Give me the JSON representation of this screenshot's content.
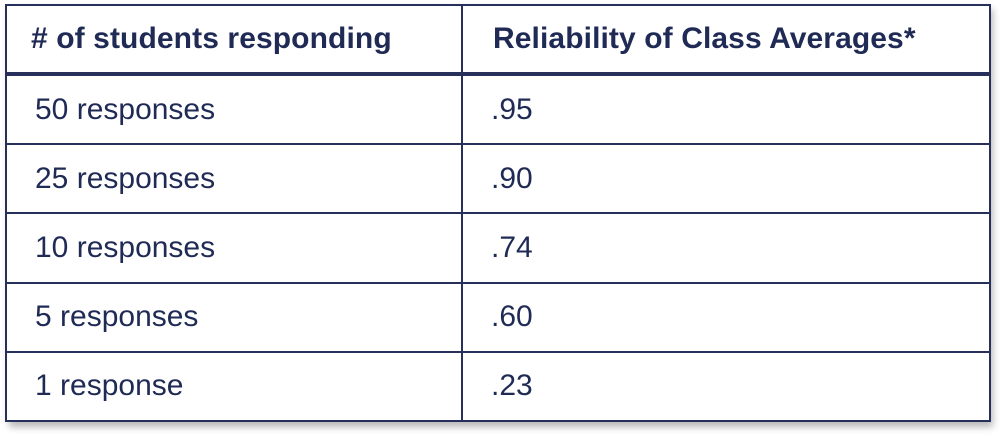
{
  "table": {
    "headers": [
      "# of students responding",
      "Reliability of Class Averages*"
    ],
    "rows": [
      {
        "responses": "50 responses",
        "reliability": ".95"
      },
      {
        "responses": "25 responses",
        "reliability": ".90"
      },
      {
        "responses": "10 responses",
        "reliability": ".74"
      },
      {
        "responses": "5 responses",
        "reliability": ".60"
      },
      {
        "responses": "1 response",
        "reliability": ".23"
      }
    ]
  },
  "colors": {
    "text": "#1f2a55",
    "border": "#26305a"
  }
}
